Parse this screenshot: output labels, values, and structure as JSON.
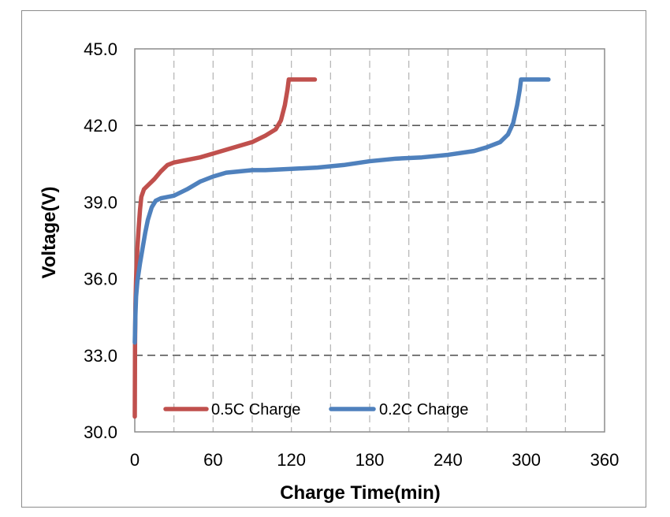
{
  "chart_data": {
    "type": "line",
    "xlabel": "Charge Time(min)",
    "ylabel": "Voltage(V)",
    "xlim": [
      0,
      360
    ],
    "ylim": [
      30.0,
      45.0
    ],
    "x_ticks": [
      "0",
      "60",
      "120",
      "180",
      "240",
      "300",
      "360"
    ],
    "y_ticks": [
      "30.0",
      "33.0",
      "36.0",
      "39.0",
      "42.0",
      "45.0"
    ],
    "grid": true,
    "legend_position": "bottom-left",
    "series": [
      {
        "name": "0.5C Charge",
        "color": "#c0504d",
        "points": [
          [
            0,
            30.6
          ],
          [
            0.2,
            33.5
          ],
          [
            0.5,
            35.0
          ],
          [
            1,
            36.0
          ],
          [
            2,
            37.2
          ],
          [
            3,
            38.0
          ],
          [
            4,
            38.7
          ],
          [
            5,
            39.2
          ],
          [
            7,
            39.5
          ],
          [
            10,
            39.65
          ],
          [
            15,
            39.9
          ],
          [
            20,
            40.2
          ],
          [
            25,
            40.45
          ],
          [
            30,
            40.55
          ],
          [
            40,
            40.65
          ],
          [
            50,
            40.75
          ],
          [
            60,
            40.9
          ],
          [
            70,
            41.05
          ],
          [
            80,
            41.2
          ],
          [
            90,
            41.35
          ],
          [
            100,
            41.6
          ],
          [
            108,
            41.85
          ],
          [
            112,
            42.2
          ],
          [
            115,
            42.8
          ],
          [
            117,
            43.4
          ],
          [
            118,
            43.8
          ],
          [
            120,
            43.8
          ],
          [
            130,
            43.8
          ],
          [
            138,
            43.8
          ]
        ]
      },
      {
        "name": "0.2C Charge",
        "color": "#4f81bd",
        "points": [
          [
            0,
            33.5
          ],
          [
            0.5,
            34.6
          ],
          [
            1,
            35.3
          ],
          [
            2,
            35.9
          ],
          [
            4,
            36.6
          ],
          [
            6,
            37.2
          ],
          [
            8,
            37.8
          ],
          [
            10,
            38.3
          ],
          [
            13,
            38.8
          ],
          [
            16,
            39.05
          ],
          [
            20,
            39.15
          ],
          [
            25,
            39.2
          ],
          [
            30,
            39.25
          ],
          [
            40,
            39.5
          ],
          [
            50,
            39.8
          ],
          [
            60,
            40.0
          ],
          [
            70,
            40.15
          ],
          [
            80,
            40.2
          ],
          [
            90,
            40.25
          ],
          [
            100,
            40.25
          ],
          [
            120,
            40.3
          ],
          [
            140,
            40.35
          ],
          [
            160,
            40.45
          ],
          [
            180,
            40.6
          ],
          [
            200,
            40.7
          ],
          [
            220,
            40.75
          ],
          [
            240,
            40.85
          ],
          [
            260,
            41.0
          ],
          [
            270,
            41.15
          ],
          [
            280,
            41.35
          ],
          [
            286,
            41.65
          ],
          [
            290,
            42.1
          ],
          [
            293,
            42.8
          ],
          [
            295,
            43.4
          ],
          [
            296,
            43.8
          ],
          [
            300,
            43.8
          ],
          [
            310,
            43.8
          ],
          [
            317,
            43.8
          ]
        ]
      }
    ]
  }
}
